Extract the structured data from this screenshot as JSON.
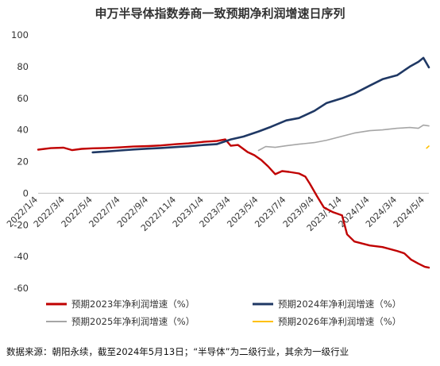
{
  "chart_data": {
    "type": "line",
    "title": "申万半导体指数券商一致预期净利润增速日序列",
    "xlabel": "",
    "ylabel": "",
    "x_tick_labels": [
      "2022/1/4",
      "2022/3/4",
      "2022/5/4",
      "2022/7/4",
      "2022/9/4",
      "2022/11/4",
      "2023/1/4",
      "2023/3/4",
      "2023/5/4",
      "2023/7/4",
      "2023/9/4",
      "2023/11/4",
      "2024/1/4",
      "2024/3/4",
      "2024/5/4"
    ],
    "y_ticks": [
      100,
      80,
      60,
      40,
      20,
      0,
      -20,
      -40,
      -60
    ],
    "ylim": [
      -60,
      100
    ],
    "grid": false,
    "legend_position": "bottom",
    "series": [
      {
        "name": "预期2023年净利润增速（%）",
        "color": "#c00000",
        "points": [
          [
            "2022/1/4",
            27.5
          ],
          [
            "2022/2/1",
            28.5
          ],
          [
            "2022/3/1",
            28.8
          ],
          [
            "2022/3/20",
            27.2
          ],
          [
            "2022/4/10",
            28.0
          ],
          [
            "2022/5/4",
            28.4
          ],
          [
            "2022/6/1",
            28.6
          ],
          [
            "2022/7/4",
            29.0
          ],
          [
            "2022/8/1",
            29.5
          ],
          [
            "2022/9/4",
            29.8
          ],
          [
            "2022/10/1",
            30.2
          ],
          [
            "2022/11/4",
            31.0
          ],
          [
            "2022/12/1",
            31.5
          ],
          [
            "2023/1/4",
            32.5
          ],
          [
            "2023/2/1",
            33.0
          ],
          [
            "2023/2/20",
            34.0
          ],
          [
            "2023/3/4",
            30.0
          ],
          [
            "2023/3/20",
            30.5
          ],
          [
            "2023/4/10",
            26.0
          ],
          [
            "2023/4/25",
            24.0
          ],
          [
            "2023/5/10",
            21.0
          ],
          [
            "2023/5/25",
            17.0
          ],
          [
            "2023/6/10",
            12.0
          ],
          [
            "2023/6/25",
            14.0
          ],
          [
            "2023/7/10",
            13.5
          ],
          [
            "2023/8/1",
            12.5
          ],
          [
            "2023/8/15",
            10.5
          ],
          [
            "2023/8/25",
            6.0
          ],
          [
            "2023/9/10",
            -2.0
          ],
          [
            "2023/9/25",
            -9.0
          ],
          [
            "2023/10/15",
            -12.0
          ],
          [
            "2023/11/4",
            -14.0
          ],
          [
            "2023/11/15",
            -26.0
          ],
          [
            "2023/12/1",
            -30.5
          ],
          [
            "2024/1/4",
            -33.0
          ],
          [
            "2024/2/1",
            -34.0
          ],
          [
            "2024/3/4",
            -36.5
          ],
          [
            "2024/3/20",
            -38.0
          ],
          [
            "2024/4/4",
            -42.0
          ],
          [
            "2024/4/20",
            -44.5
          ],
          [
            "2024/5/4",
            -46.5
          ],
          [
            "2024/5/13",
            -47.0
          ]
        ]
      },
      {
        "name": "预期2024年净利润增速（%）",
        "color": "#1f3864",
        "points": [
          [
            "2022/5/4",
            25.8
          ],
          [
            "2022/6/1",
            26.3
          ],
          [
            "2022/7/4",
            27.0
          ],
          [
            "2022/8/1",
            27.6
          ],
          [
            "2022/9/4",
            28.2
          ],
          [
            "2022/10/1",
            28.6
          ],
          [
            "2022/11/4",
            29.2
          ],
          [
            "2022/12/1",
            29.7
          ],
          [
            "2023/1/4",
            30.5
          ],
          [
            "2023/2/1",
            31.0
          ],
          [
            "2023/3/4",
            34.0
          ],
          [
            "2023/4/1",
            35.8
          ],
          [
            "2023/5/4",
            39.0
          ],
          [
            "2023/6/1",
            42.0
          ],
          [
            "2023/7/4",
            46.0
          ],
          [
            "2023/8/1",
            47.5
          ],
          [
            "2023/9/4",
            52.0
          ],
          [
            "2023/10/1",
            57.0
          ],
          [
            "2023/11/4",
            60.0
          ],
          [
            "2023/12/1",
            63.0
          ],
          [
            "2024/1/4",
            68.0
          ],
          [
            "2024/2/1",
            72.0
          ],
          [
            "2024/3/4",
            74.5
          ],
          [
            "2024/4/1",
            80.0
          ],
          [
            "2024/4/20",
            83.0
          ],
          [
            "2024/5/1",
            85.5
          ],
          [
            "2024/5/13",
            79.5
          ]
        ]
      },
      {
        "name": "预期2025年净利润增速（%）",
        "color": "#a6a6a6",
        "points": [
          [
            "2023/5/4",
            27.0
          ],
          [
            "2023/5/20",
            29.5
          ],
          [
            "2023/6/10",
            29.0
          ],
          [
            "2023/7/4",
            30.0
          ],
          [
            "2023/8/1",
            31.0
          ],
          [
            "2023/9/4",
            32.0
          ],
          [
            "2023/10/1",
            33.5
          ],
          [
            "2023/11/4",
            36.0
          ],
          [
            "2023/12/1",
            38.0
          ],
          [
            "2024/1/4",
            39.5
          ],
          [
            "2024/2/1",
            40.0
          ],
          [
            "2024/3/4",
            41.0
          ],
          [
            "2024/4/1",
            41.5
          ],
          [
            "2024/4/20",
            41.0
          ],
          [
            "2024/5/1",
            43.0
          ],
          [
            "2024/5/13",
            42.5
          ]
        ]
      },
      {
        "name": "预期2026年净利润增速（%）",
        "color": "#ffc000",
        "points": [
          [
            "2024/5/8",
            28.5
          ],
          [
            "2024/5/10",
            29.0
          ],
          [
            "2024/5/13",
            29.8
          ]
        ]
      }
    ]
  },
  "footer": {
    "source_text": "数据来源：朝阳永续，截至2024年5月13日；“半导体”为二级行业，其余为一级行业"
  }
}
